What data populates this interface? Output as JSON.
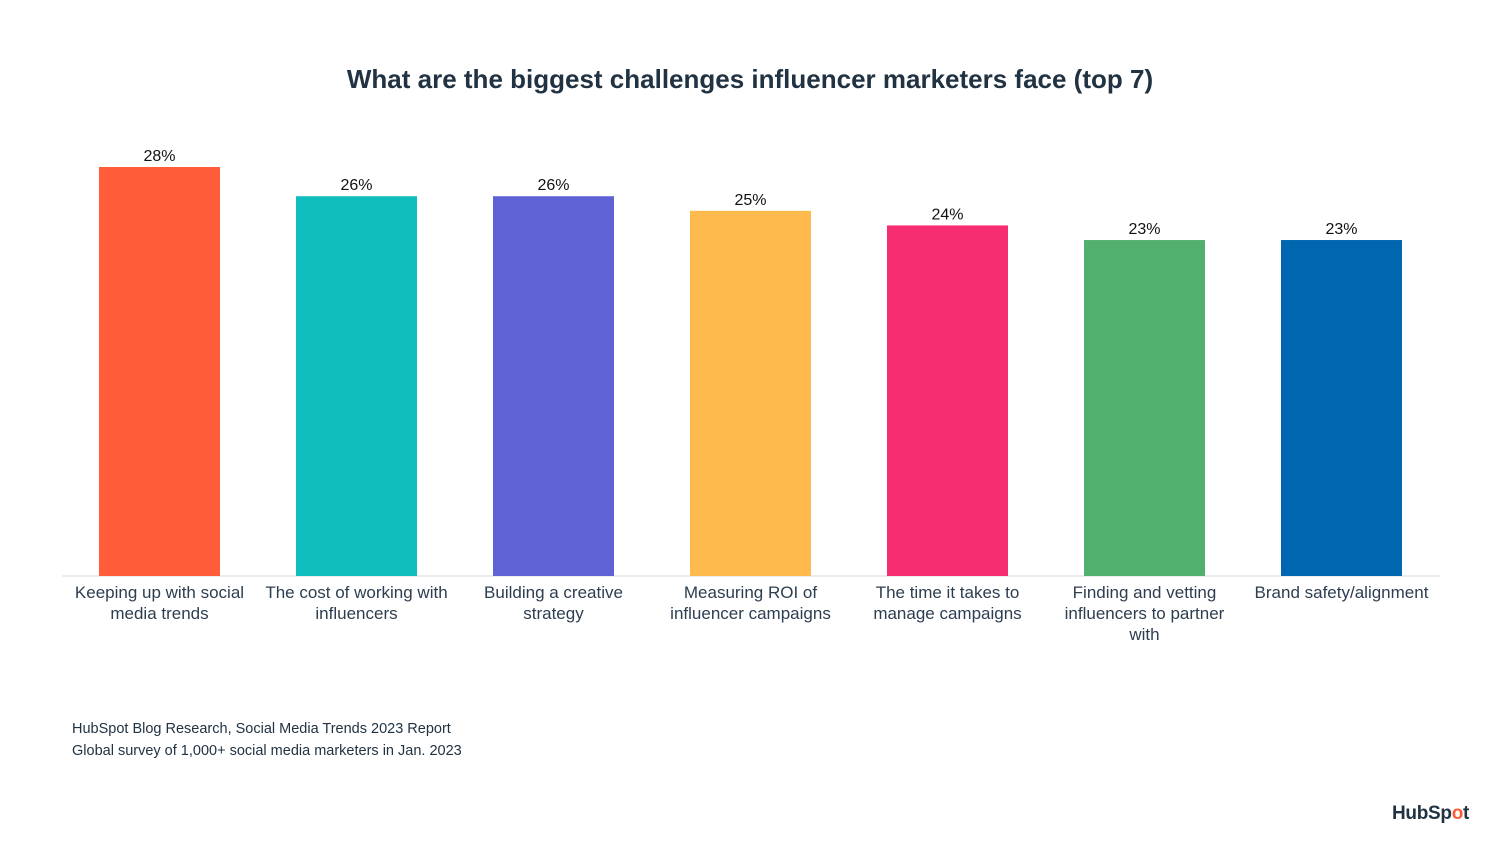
{
  "chart_data": {
    "type": "bar",
    "title": "What are the biggest challenges influencer marketers face (top 7)",
    "categories": [
      "Keeping up with social media trends",
      "The cost of working with influencers",
      "Building a creative strategy",
      "Measuring ROI of influencer campaigns",
      "The time it takes to manage campaigns",
      "Finding and vetting influencers to partner with",
      "Brand safety/alignment"
    ],
    "values": [
      28,
      26,
      26,
      25,
      24,
      23,
      23
    ],
    "value_labels": [
      "28%",
      "26%",
      "26%",
      "25%",
      "24%",
      "23%",
      "23%"
    ],
    "colors": [
      "#ff5c39",
      "#10bfbd",
      "#5e62d4",
      "#ffba4d",
      "#f72d72",
      "#52b06e",
      "#0066b0"
    ],
    "xlabel": "",
    "ylabel": "",
    "ylim": [
      0,
      28
    ],
    "grid": false,
    "legend": "none"
  },
  "source": {
    "line1": "HubSpot Blog Research, Social Media Trends 2023 Report",
    "line2": "Global survey of 1,000+ social media marketers in Jan. 2023"
  },
  "logo": {
    "text_main": "HubSp",
    "text_accent": "o",
    "text_end": "t"
  }
}
